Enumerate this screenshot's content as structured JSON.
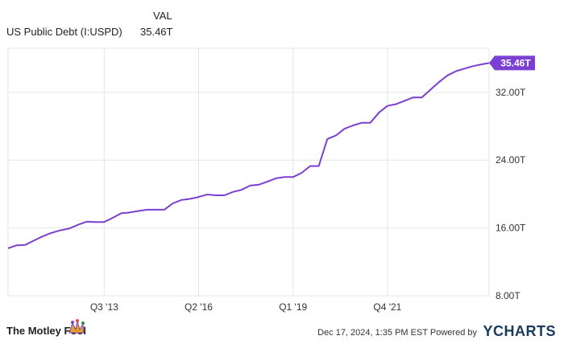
{
  "legend": {
    "header": "VAL",
    "series_name": "US Public Debt (I:USPD)",
    "series_value": "35.46T"
  },
  "footer": {
    "brand": "The Motley Fool",
    "credit": "Dec 17, 2024, 1:35 PM EST  Powered by",
    "ycharts": "CHARTS"
  },
  "colors": {
    "line": "#7b3fd1",
    "grid": "#e6e6e6",
    "axis_text": "#333333",
    "badge_bg": "#7b3fd1",
    "badge_text": "#ffffff"
  },
  "chart_data": {
    "type": "line",
    "title": "",
    "xlabel": "",
    "ylabel": "",
    "ylim": [
      8,
      37.2
    ],
    "xlim": [
      2010.95,
      2024.96
    ],
    "y_ticks": [
      {
        "value": 8,
        "label": "8.00T"
      },
      {
        "value": 16,
        "label": "16.00T"
      },
      {
        "value": 24,
        "label": "24.00T"
      },
      {
        "value": 32,
        "label": "32.00T"
      }
    ],
    "x_ticks": [
      {
        "value": 2013.75,
        "label": "Q3 '13"
      },
      {
        "value": 2016.5,
        "label": "Q2 '16"
      },
      {
        "value": 2019.25,
        "label": "Q1 '19"
      },
      {
        "value": 2022.0,
        "label": "Q4 '21"
      }
    ],
    "grid": true,
    "last_value_label": "35.46T",
    "series": [
      {
        "name": "US Public Debt (I:USPD)",
        "x": [
          2010.95,
          2011.2,
          2011.45,
          2011.7,
          2011.95,
          2012.2,
          2012.45,
          2012.75,
          2013.0,
          2013.25,
          2013.45,
          2013.75,
          2014.0,
          2014.25,
          2014.45,
          2014.75,
          2015.0,
          2015.25,
          2015.5,
          2015.75,
          2016.0,
          2016.2,
          2016.45,
          2016.75,
          2017.0,
          2017.25,
          2017.5,
          2017.75,
          2018.0,
          2018.25,
          2018.5,
          2018.75,
          2019.0,
          2019.25,
          2019.5,
          2019.75,
          2020.0,
          2020.25,
          2020.5,
          2020.75,
          2021.0,
          2021.25,
          2021.5,
          2021.75,
          2022.0,
          2022.25,
          2022.5,
          2022.75,
          2023.0,
          2023.25,
          2023.5,
          2023.75,
          2024.0,
          2024.25,
          2024.5,
          2024.75,
          2024.96
        ],
        "values": [
          13.6,
          13.95,
          14.0,
          14.5,
          15.0,
          15.4,
          15.7,
          15.95,
          16.4,
          16.75,
          16.7,
          16.7,
          17.2,
          17.75,
          17.8,
          18.0,
          18.15,
          18.15,
          18.15,
          18.9,
          19.3,
          19.4,
          19.6,
          19.95,
          19.85,
          19.85,
          20.25,
          20.5,
          21.0,
          21.1,
          21.45,
          21.85,
          22.0,
          22.0,
          22.5,
          23.3,
          23.3,
          26.5,
          26.9,
          27.7,
          28.1,
          28.4,
          28.4,
          29.6,
          30.4,
          30.6,
          31.0,
          31.4,
          31.4,
          32.3,
          33.2,
          34.0,
          34.5,
          34.8,
          35.1,
          35.3,
          35.46
        ]
      }
    ]
  }
}
